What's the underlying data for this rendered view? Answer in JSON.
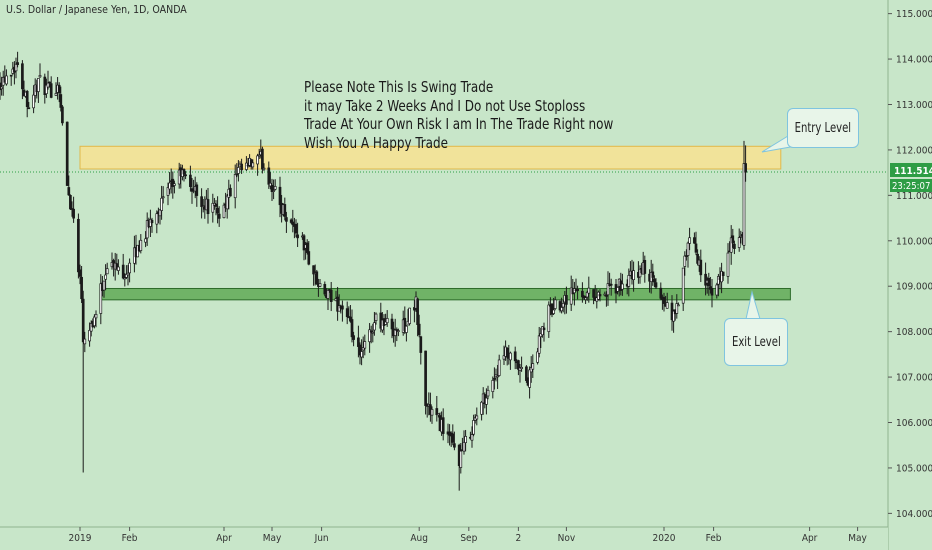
{
  "symbol": "U.S. Dollar / Japanese Yen, 1D, OANDA",
  "note_lines": [
    "Please Note This Is Swing Trade",
    "it may Take 2 Weeks And I Do not Use Stoploss",
    "Trade At Your Own Risk I am In The Trade Right now",
    "Wish You A Happy Trade"
  ],
  "callouts": {
    "entry": "Entry Level",
    "exit": "Exit Level"
  },
  "price_axis": {
    "labels": [
      "115.000",
      "114.000",
      "113.000",
      "112.000",
      "111.000",
      "110.000",
      "109.000",
      "108.000",
      "107.000",
      "106.000",
      "105.000",
      "104.000"
    ],
    "current_price": "111.514",
    "countdown": "23:25:07"
  },
  "time_axis": {
    "labels": [
      "2019",
      "Feb",
      "Apr",
      "May",
      "Jun",
      "Aug",
      "Sep",
      "2",
      "Nov",
      "2020",
      "Feb",
      "Apr",
      "May"
    ]
  },
  "colors": {
    "background": "#c8e6c9",
    "up_candle": "#ffffff",
    "down_candle": "#1b1b1b",
    "entry_zone": "#ffe28a",
    "exit_zone": "#5aa64f",
    "price_badge": "#2e9d45"
  },
  "chart_data": {
    "type": "candlestick",
    "title": "U.S. Dollar / Japanese Yen, 1D, OANDA",
    "ylim": [
      103.7,
      115.3
    ],
    "xlim": [
      "2018-11-12",
      "2020-05-20"
    ],
    "zones": [
      {
        "label": "Entry Level",
        "from": 111.58,
        "to": 112.08
      },
      {
        "label": "Exit Level",
        "from": 108.7,
        "to": 108.95
      }
    ],
    "current_price": 111.514,
    "path": [
      [
        "2018-11-12",
        113.5
      ],
      [
        "2018-11-22",
        113.9
      ],
      [
        "2018-11-30",
        113.0
      ],
      [
        "2018-12-06",
        113.5
      ],
      [
        "2018-12-12",
        113.3
      ],
      [
        "2018-12-19",
        113.4
      ],
      [
        "2018-12-24",
        111.2
      ],
      [
        "2018-12-28",
        110.5
      ],
      [
        "2019-01-02",
        108.8
      ],
      [
        "2019-01-03",
        107.9
      ],
      [
        "2019-01-10",
        108.3
      ],
      [
        "2019-01-18",
        109.5
      ],
      [
        "2019-01-30",
        109.3
      ],
      [
        "2019-02-15",
        110.5
      ],
      [
        "2019-03-05",
        111.5
      ],
      [
        "2019-03-20",
        110.8
      ],
      [
        "2019-03-30",
        110.6
      ],
      [
        "2019-04-10",
        111.5
      ],
      [
        "2019-04-24",
        111.8
      ],
      [
        "2019-05-06",
        110.8
      ],
      [
        "2019-05-20",
        110.0
      ],
      [
        "2019-05-31",
        108.9
      ],
      [
        "2019-06-15",
        108.5
      ],
      [
        "2019-06-25",
        107.4
      ],
      [
        "2019-07-05",
        108.3
      ],
      [
        "2019-07-20",
        108.0
      ],
      [
        "2019-07-30",
        108.6
      ],
      [
        "2019-08-05",
        106.4
      ],
      [
        "2019-08-16",
        105.9
      ],
      [
        "2019-08-26",
        105.2
      ],
      [
        "2019-09-10",
        106.5
      ],
      [
        "2019-09-24",
        107.5
      ],
      [
        "2019-10-08",
        106.9
      ],
      [
        "2019-10-20",
        108.4
      ],
      [
        "2019-11-05",
        108.9
      ],
      [
        "2019-11-20",
        108.8
      ],
      [
        "2019-12-05",
        109.0
      ],
      [
        "2019-12-20",
        109.4
      ],
      [
        "2020-01-02",
        108.6
      ],
      [
        "2020-01-08",
        108.3
      ],
      [
        "2020-01-17",
        110.1
      ],
      [
        "2020-01-24",
        109.4
      ],
      [
        "2020-01-31",
        108.7
      ],
      [
        "2020-02-12",
        109.9
      ],
      [
        "2020-02-19",
        110.0
      ],
      [
        "2020-02-20",
        111.7
      ],
      [
        "2020-02-21",
        111.6
      ]
    ]
  }
}
